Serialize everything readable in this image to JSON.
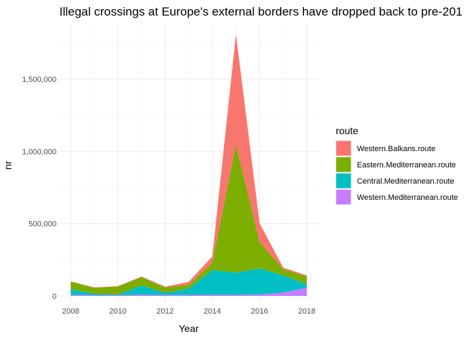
{
  "chart_data": {
    "type": "area",
    "stacked": true,
    "title": "Illegal crossings at Europe's external borders have dropped back to pre-201",
    "xlabel": "Year",
    "ylabel": "nr",
    "xlim": [
      2008,
      2018
    ],
    "ylim": [
      0,
      1822000
    ],
    "x_ticks": [
      2008,
      2010,
      2012,
      2014,
      2016,
      2018
    ],
    "x_tick_labels": [
      "2008",
      "2010",
      "2012",
      "2014",
      "2016",
      "2018"
    ],
    "y_ticks": [
      0,
      500000,
      1000000,
      1500000
    ],
    "y_tick_labels": [
      "0",
      "500,000",
      "1,000,000",
      "1,500,000"
    ],
    "grid": true,
    "legend_position": "right",
    "legend_title": "route",
    "x": [
      2008,
      2009,
      2010,
      2011,
      2012,
      2013,
      2014,
      2015,
      2016,
      2017,
      2018
    ],
    "series": [
      {
        "name": "Western.Balkans.route",
        "color": "#F8766D",
        "values": [
          3000,
          3000,
          3000,
          5000,
          6000,
          20000,
          44000,
          764000,
          130000,
          12000,
          6000
        ]
      },
      {
        "name": "Eastern.Mediterranean.route",
        "color": "#7CAE00",
        "values": [
          52000,
          40000,
          55000,
          57000,
          37000,
          25000,
          51000,
          885000,
          182000,
          42000,
          56000
        ]
      },
      {
        "name": "Central.Mediterranean.route",
        "color": "#00BFC4",
        "values": [
          39000,
          11000,
          5000,
          64000,
          15000,
          45000,
          171000,
          154000,
          181000,
          119000,
          23000
        ]
      },
      {
        "name": "Western.Mediterranean.route",
        "color": "#C77CFF",
        "values": [
          6500,
          5000,
          5000,
          8400,
          6400,
          6800,
          7800,
          7200,
          10000,
          23000,
          57000
        ]
      }
    ]
  }
}
